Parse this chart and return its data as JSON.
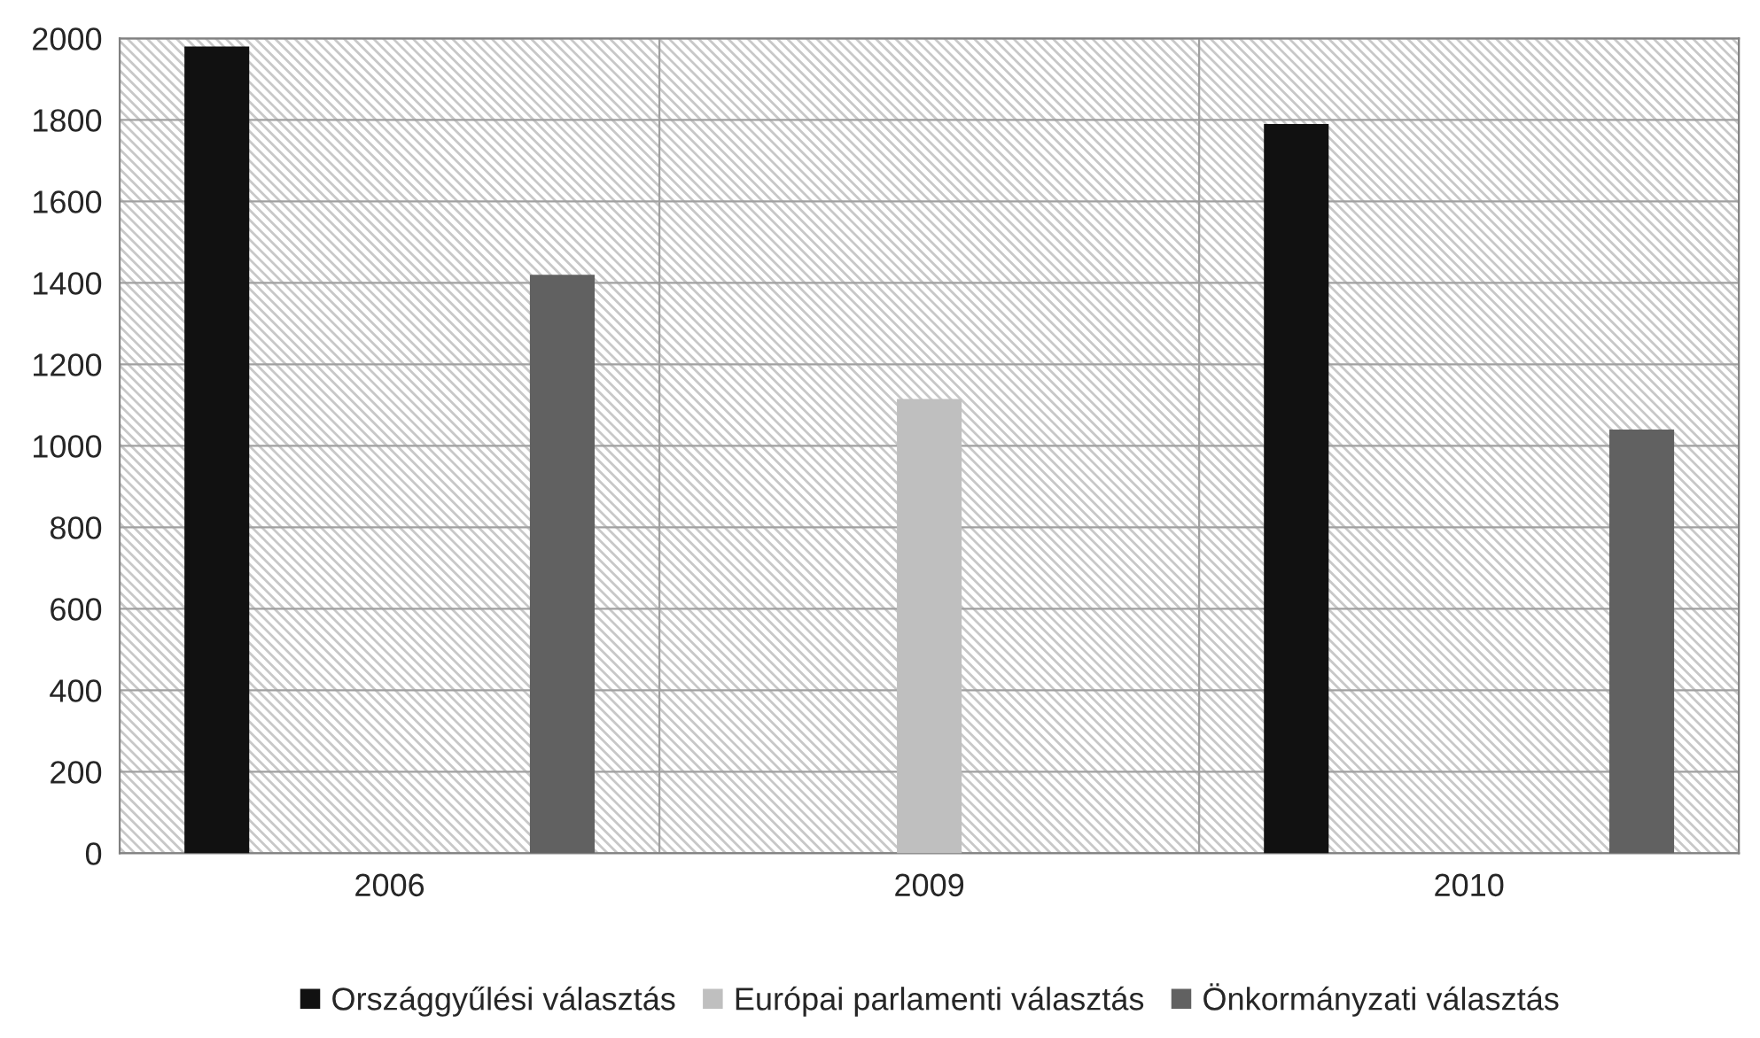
{
  "chart_data": {
    "type": "bar",
    "categories": [
      "2006",
      "2009",
      "2010"
    ],
    "series": [
      {
        "name": "Országgyűlési választás",
        "color": "#111111",
        "values": [
          1980,
          null,
          1790
        ]
      },
      {
        "name": "Európai parlamenti választás",
        "color": "#bfbfbf",
        "values": [
          null,
          1115,
          null
        ]
      },
      {
        "name": "Önkormányzati választás",
        "color": "#616161",
        "values": [
          1420,
          null,
          1040
        ]
      }
    ],
    "ylim": [
      0,
      2000
    ],
    "yticks": [
      0,
      200,
      400,
      600,
      800,
      1000,
      1200,
      1400,
      1600,
      1800,
      2000
    ],
    "grid": "y",
    "legend": "bottom"
  }
}
